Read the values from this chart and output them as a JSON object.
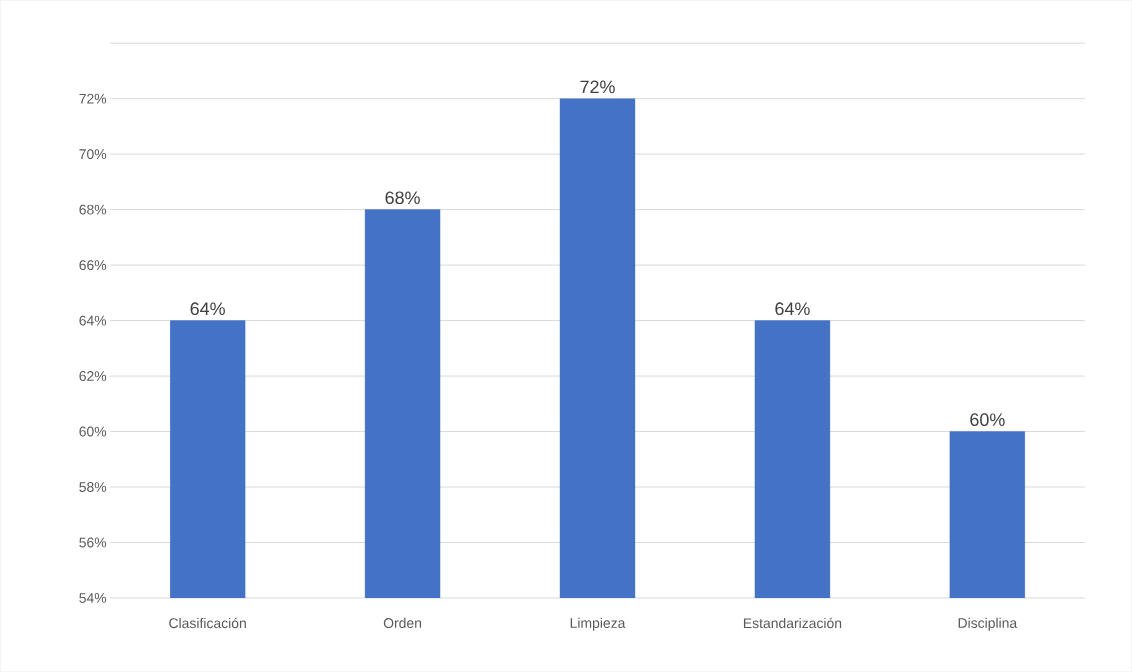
{
  "chart_data": {
    "type": "bar",
    "categories": [
      "Clasificación",
      "Orden",
      "Limpieza",
      "Estandarización",
      "Disciplina"
    ],
    "values": [
      64,
      68,
      72,
      64,
      60
    ],
    "value_labels": [
      "64%",
      "68%",
      "72%",
      "64%",
      "60%"
    ],
    "color": "#4472c4",
    "ylim": [
      54,
      74
    ],
    "yticks": [
      {
        "value": 54,
        "label": "54%"
      },
      {
        "value": 56,
        "label": "56%"
      },
      {
        "value": 58,
        "label": "58%"
      },
      {
        "value": 60,
        "label": "60%"
      },
      {
        "value": 62,
        "label": "62%"
      },
      {
        "value": 64,
        "label": "64%"
      },
      {
        "value": 66,
        "label": "66%"
      },
      {
        "value": 68,
        "label": "68%"
      },
      {
        "value": 70,
        "label": "70%"
      },
      {
        "value": 72,
        "label": "72%"
      },
      {
        "value": 74,
        "label": null
      }
    ],
    "grid": "y"
  }
}
